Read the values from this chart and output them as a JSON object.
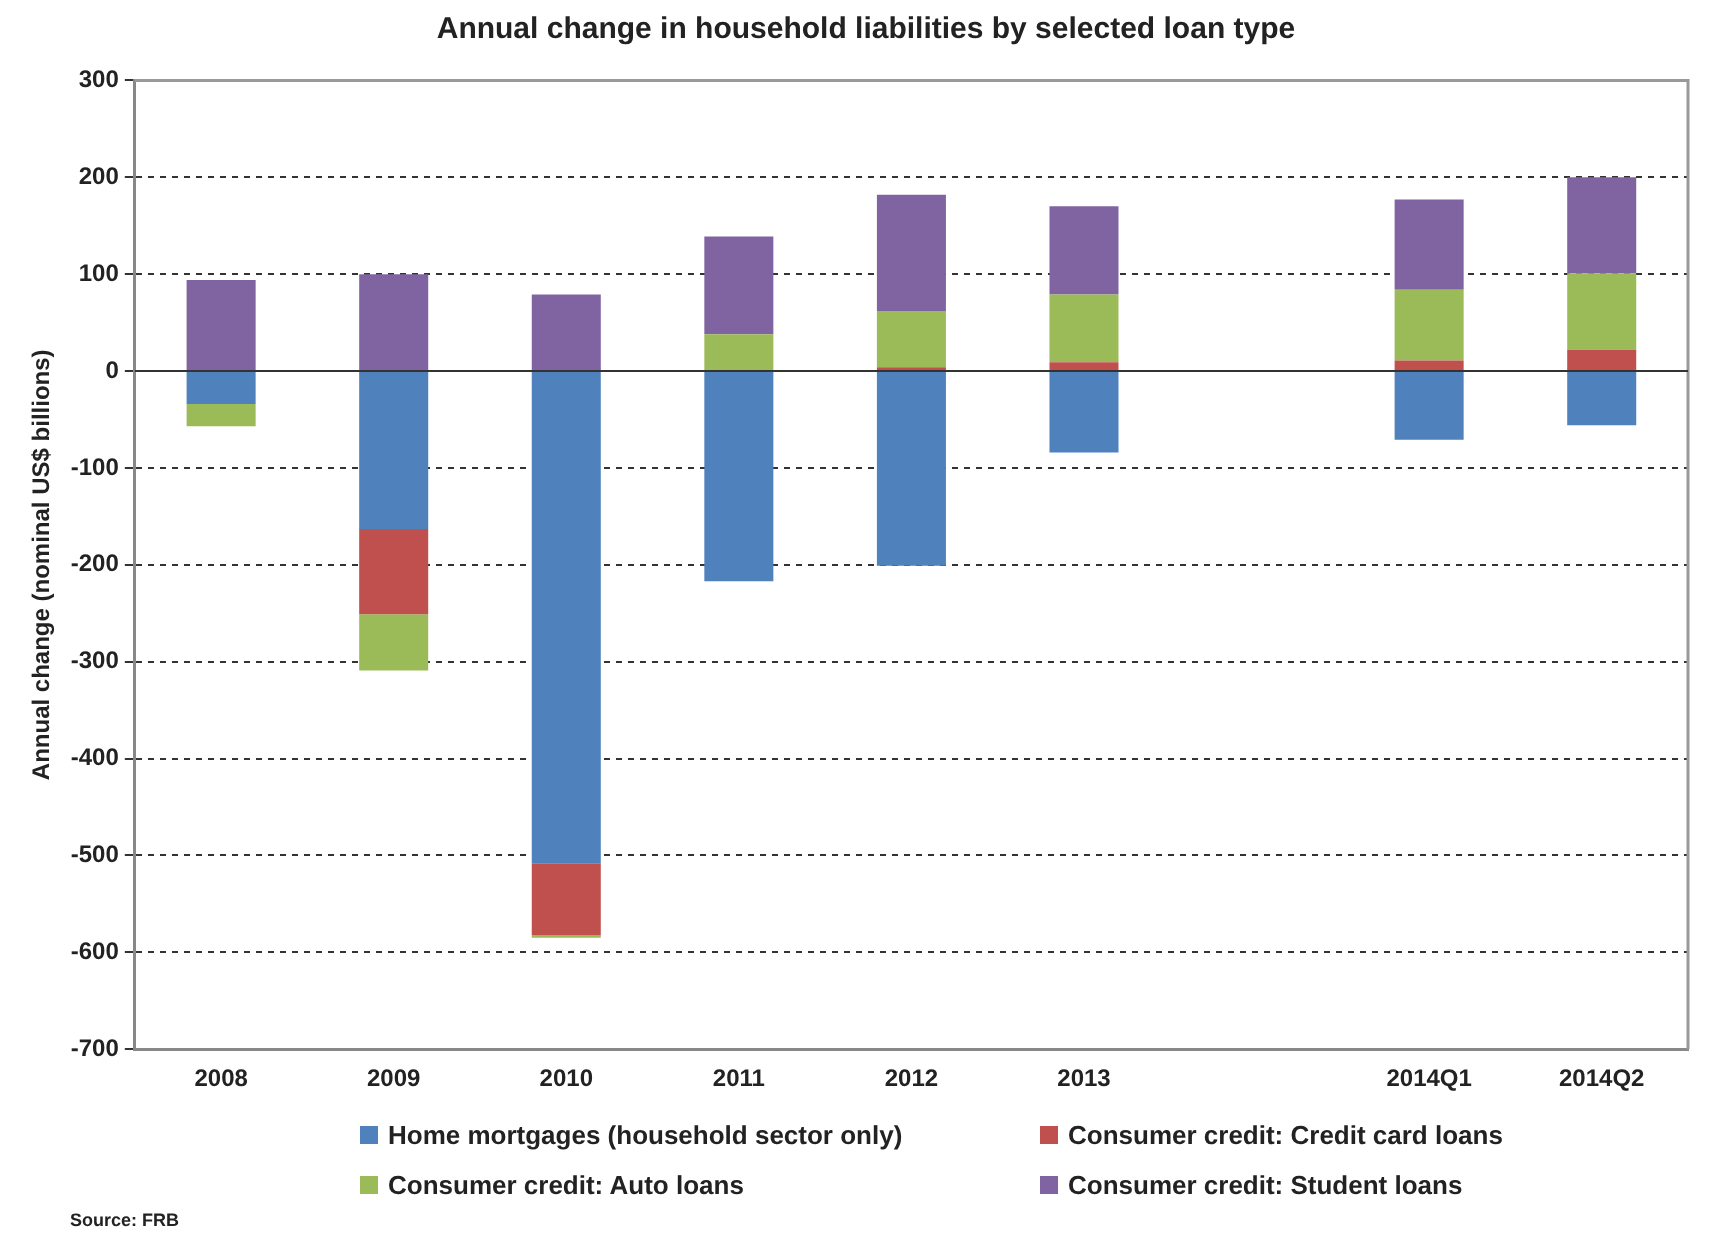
{
  "chart_data": {
    "type": "bar",
    "title": "Annual change in household liabilities by selected loan type",
    "ylabel": "Annual change (nominal US$ billions)",
    "categories": [
      "2008",
      "2009",
      "2010",
      "2011",
      "2012",
      "2013",
      null,
      "2014Q1",
      "2014Q2"
    ],
    "stacked": true,
    "series": [
      {
        "name": "Home mortgages (household sector only)",
        "color": "#4f81bd",
        "values": [
          -34,
          -163,
          -508,
          -217,
          -201,
          -84,
          null,
          -71,
          -56
        ]
      },
      {
        "name": "Consumer credit: Credit card loans",
        "color": "#c0504d",
        "values": [
          0,
          -88,
          -74,
          0,
          4,
          9,
          null,
          11,
          22
        ]
      },
      {
        "name": "Consumer credit: Auto loans",
        "color": "#9bbb59",
        "values": [
          -23,
          -58,
          -3,
          38,
          58,
          70,
          null,
          73,
          79
        ]
      },
      {
        "name": "Consumer credit: Student loans",
        "color": "#8064a2",
        "values": [
          94,
          100,
          79,
          101,
          120,
          91,
          null,
          93,
          99
        ]
      }
    ],
    "ylim": [
      -700,
      300
    ],
    "yticks": [
      -700,
      -600,
      -500,
      -400,
      -300,
      -200,
      -100,
      0,
      100,
      200,
      300
    ],
    "grid": "y",
    "legend": "bottom",
    "annotations": [
      "Source: FRB"
    ]
  }
}
